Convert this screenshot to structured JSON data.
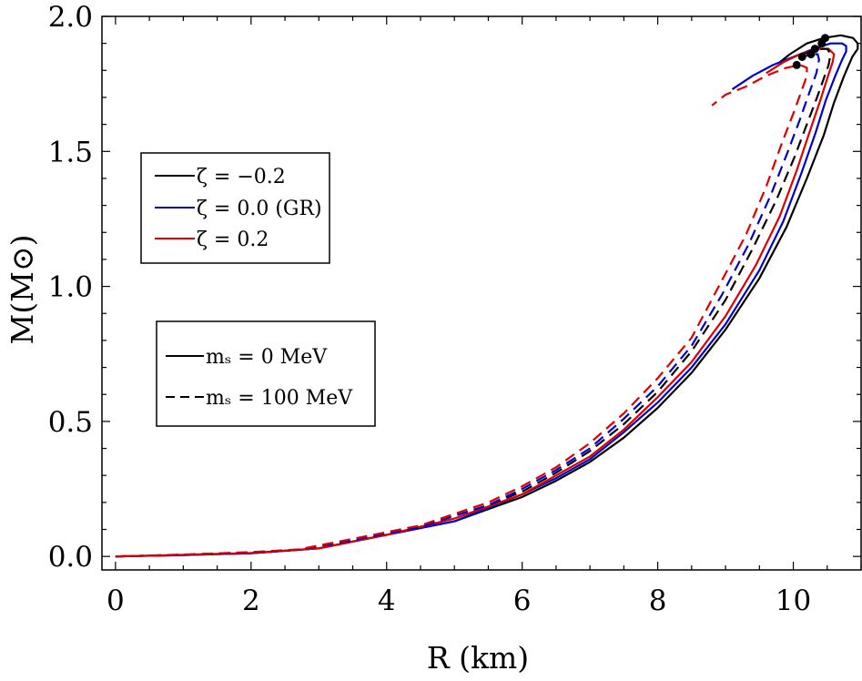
{
  "chart_data": {
    "type": "line",
    "xlabel": "R (km)",
    "ylabel": "M(M⊙)",
    "xlim": [
      -0.2,
      11.0
    ],
    "ylim": [
      -0.05,
      2.0
    ],
    "xticks": [
      "0",
      "2",
      "4",
      "6",
      "8",
      "10"
    ],
    "xtick_values": [
      0,
      2,
      4,
      6,
      8,
      10
    ],
    "yticks": [
      "0.0",
      "0.5",
      "1.0",
      "1.5",
      "2.0"
    ],
    "ytick_values": [
      0.0,
      0.5,
      1.0,
      1.5,
      2.0
    ],
    "grid": false,
    "legend_zeta": {
      "placement": "upper-left",
      "entries": [
        {
          "label": "ζ = −0.2",
          "color": "#000000"
        },
        {
          "label": "ζ = 0.0 (GR)",
          "color": "#0000cc"
        },
        {
          "label": "ζ = 0.2",
          "color": "#dd0000"
        }
      ]
    },
    "legend_ms": {
      "placement": "center-left",
      "entries": [
        {
          "label": "mₛ = 0 MeV",
          "dash": "solid"
        },
        {
          "label": "mₛ = 100 MeV",
          "dash": "dashed"
        }
      ]
    },
    "series": [
      {
        "zeta": "−0.2",
        "ms": "0",
        "color": "#000000",
        "dash": "solid",
        "x": [
          0,
          1.0,
          2.0,
          3.0,
          4.0,
          5.0,
          6.0,
          6.5,
          7.0,
          7.5,
          8.0,
          8.5,
          9.0,
          9.5,
          9.9,
          10.2,
          10.45,
          10.6,
          10.75,
          10.87,
          10.95,
          10.95,
          10.88,
          10.7,
          10.45,
          10.2,
          9.95,
          9.8
        ],
        "y": [
          0.0,
          0.005,
          0.012,
          0.03,
          0.08,
          0.13,
          0.22,
          0.28,
          0.35,
          0.44,
          0.55,
          0.68,
          0.84,
          1.03,
          1.22,
          1.4,
          1.56,
          1.68,
          1.78,
          1.85,
          1.88,
          1.9,
          1.92,
          1.93,
          1.92,
          1.9,
          1.86,
          1.83
        ]
      },
      {
        "zeta": "0.0 (GR)",
        "ms": "0",
        "color": "#0000cc",
        "dash": "solid",
        "x": [
          0,
          1.0,
          2.0,
          3.0,
          4.0,
          5.0,
          6.0,
          6.5,
          7.0,
          7.5,
          8.0,
          8.5,
          9.0,
          9.5,
          9.85,
          10.12,
          10.33,
          10.48,
          10.62,
          10.72,
          10.78,
          10.78,
          10.72,
          10.55,
          10.3,
          10.0,
          9.7,
          9.4,
          9.1
        ],
        "y": [
          0.0,
          0.005,
          0.012,
          0.03,
          0.08,
          0.13,
          0.23,
          0.29,
          0.36,
          0.46,
          0.57,
          0.7,
          0.86,
          1.06,
          1.24,
          1.42,
          1.57,
          1.69,
          1.78,
          1.84,
          1.87,
          1.89,
          1.9,
          1.9,
          1.88,
          1.85,
          1.82,
          1.78,
          1.73
        ]
      },
      {
        "zeta": "0.2",
        "ms": "0",
        "color": "#dd0000",
        "dash": "solid",
        "x": [
          0,
          1.0,
          2.0,
          3.0,
          4.0,
          5.0,
          6.0,
          6.5,
          7.0,
          7.5,
          8.0,
          8.5,
          9.0,
          9.45,
          9.8,
          10.05,
          10.25,
          10.4,
          10.5,
          10.58,
          10.6,
          10.52,
          10.35,
          10.1,
          9.85,
          9.6
        ],
        "y": [
          0.0,
          0.006,
          0.013,
          0.03,
          0.08,
          0.14,
          0.23,
          0.3,
          0.37,
          0.47,
          0.59,
          0.72,
          0.89,
          1.08,
          1.26,
          1.43,
          1.58,
          1.69,
          1.77,
          1.83,
          1.86,
          1.88,
          1.88,
          1.86,
          1.83,
          1.79
        ]
      },
      {
        "zeta": "−0.2",
        "ms": "100",
        "color": "#000000",
        "dash": "dashed",
        "x": [
          0,
          1.0,
          2.0,
          2.7,
          3.5,
          4.5,
          5.5,
          6.0,
          6.5,
          7.0,
          7.5,
          8.0,
          8.5,
          9.0,
          9.4,
          9.75,
          10.02,
          10.2,
          10.35,
          10.45,
          10.52,
          10.55,
          10.5,
          10.35,
          10.15
        ],
        "y": [
          0.0,
          0.006,
          0.015,
          0.025,
          0.06,
          0.11,
          0.19,
          0.24,
          0.31,
          0.39,
          0.49,
          0.61,
          0.76,
          0.95,
          1.14,
          1.32,
          1.48,
          1.6,
          1.7,
          1.77,
          1.82,
          1.86,
          1.88,
          1.88,
          1.86
        ]
      },
      {
        "zeta": "0.0 (GR)",
        "ms": "100",
        "color": "#0000cc",
        "dash": "dashed",
        "x": [
          0,
          1.0,
          2.0,
          2.7,
          3.5,
          4.5,
          5.5,
          6.0,
          6.5,
          7.0,
          7.5,
          8.0,
          8.5,
          8.95,
          9.35,
          9.67,
          9.92,
          10.1,
          10.24,
          10.34,
          10.38,
          10.36,
          10.25,
          10.05
        ],
        "y": [
          0.0,
          0.006,
          0.015,
          0.025,
          0.06,
          0.11,
          0.19,
          0.25,
          0.32,
          0.4,
          0.51,
          0.63,
          0.78,
          0.97,
          1.16,
          1.34,
          1.5,
          1.62,
          1.72,
          1.79,
          1.84,
          1.86,
          1.86,
          1.84
        ]
      },
      {
        "zeta": "0.2",
        "ms": "100",
        "color": "#dd0000",
        "dash": "dashed",
        "x": [
          0,
          1.0,
          2.0,
          2.7,
          3.5,
          4.5,
          5.5,
          6.0,
          6.5,
          7.0,
          7.5,
          8.0,
          8.5,
          8.9,
          9.3,
          9.6,
          9.83,
          10.0,
          10.13,
          10.2,
          10.2,
          10.1,
          9.9,
          9.6,
          9.3,
          9.0,
          8.8
        ],
        "y": [
          0.0,
          0.007,
          0.016,
          0.026,
          0.065,
          0.115,
          0.2,
          0.26,
          0.33,
          0.42,
          0.53,
          0.66,
          0.81,
          1.0,
          1.19,
          1.37,
          1.53,
          1.64,
          1.73,
          1.78,
          1.81,
          1.82,
          1.81,
          1.78,
          1.74,
          1.71,
          1.67
        ]
      }
    ],
    "max_mass_points": {
      "color": "#000000",
      "x": [
        10.47,
        10.42,
        10.32,
        10.26,
        10.13,
        10.05
      ],
      "y": [
        1.92,
        1.9,
        1.88,
        1.86,
        1.85,
        1.82
      ]
    }
  }
}
